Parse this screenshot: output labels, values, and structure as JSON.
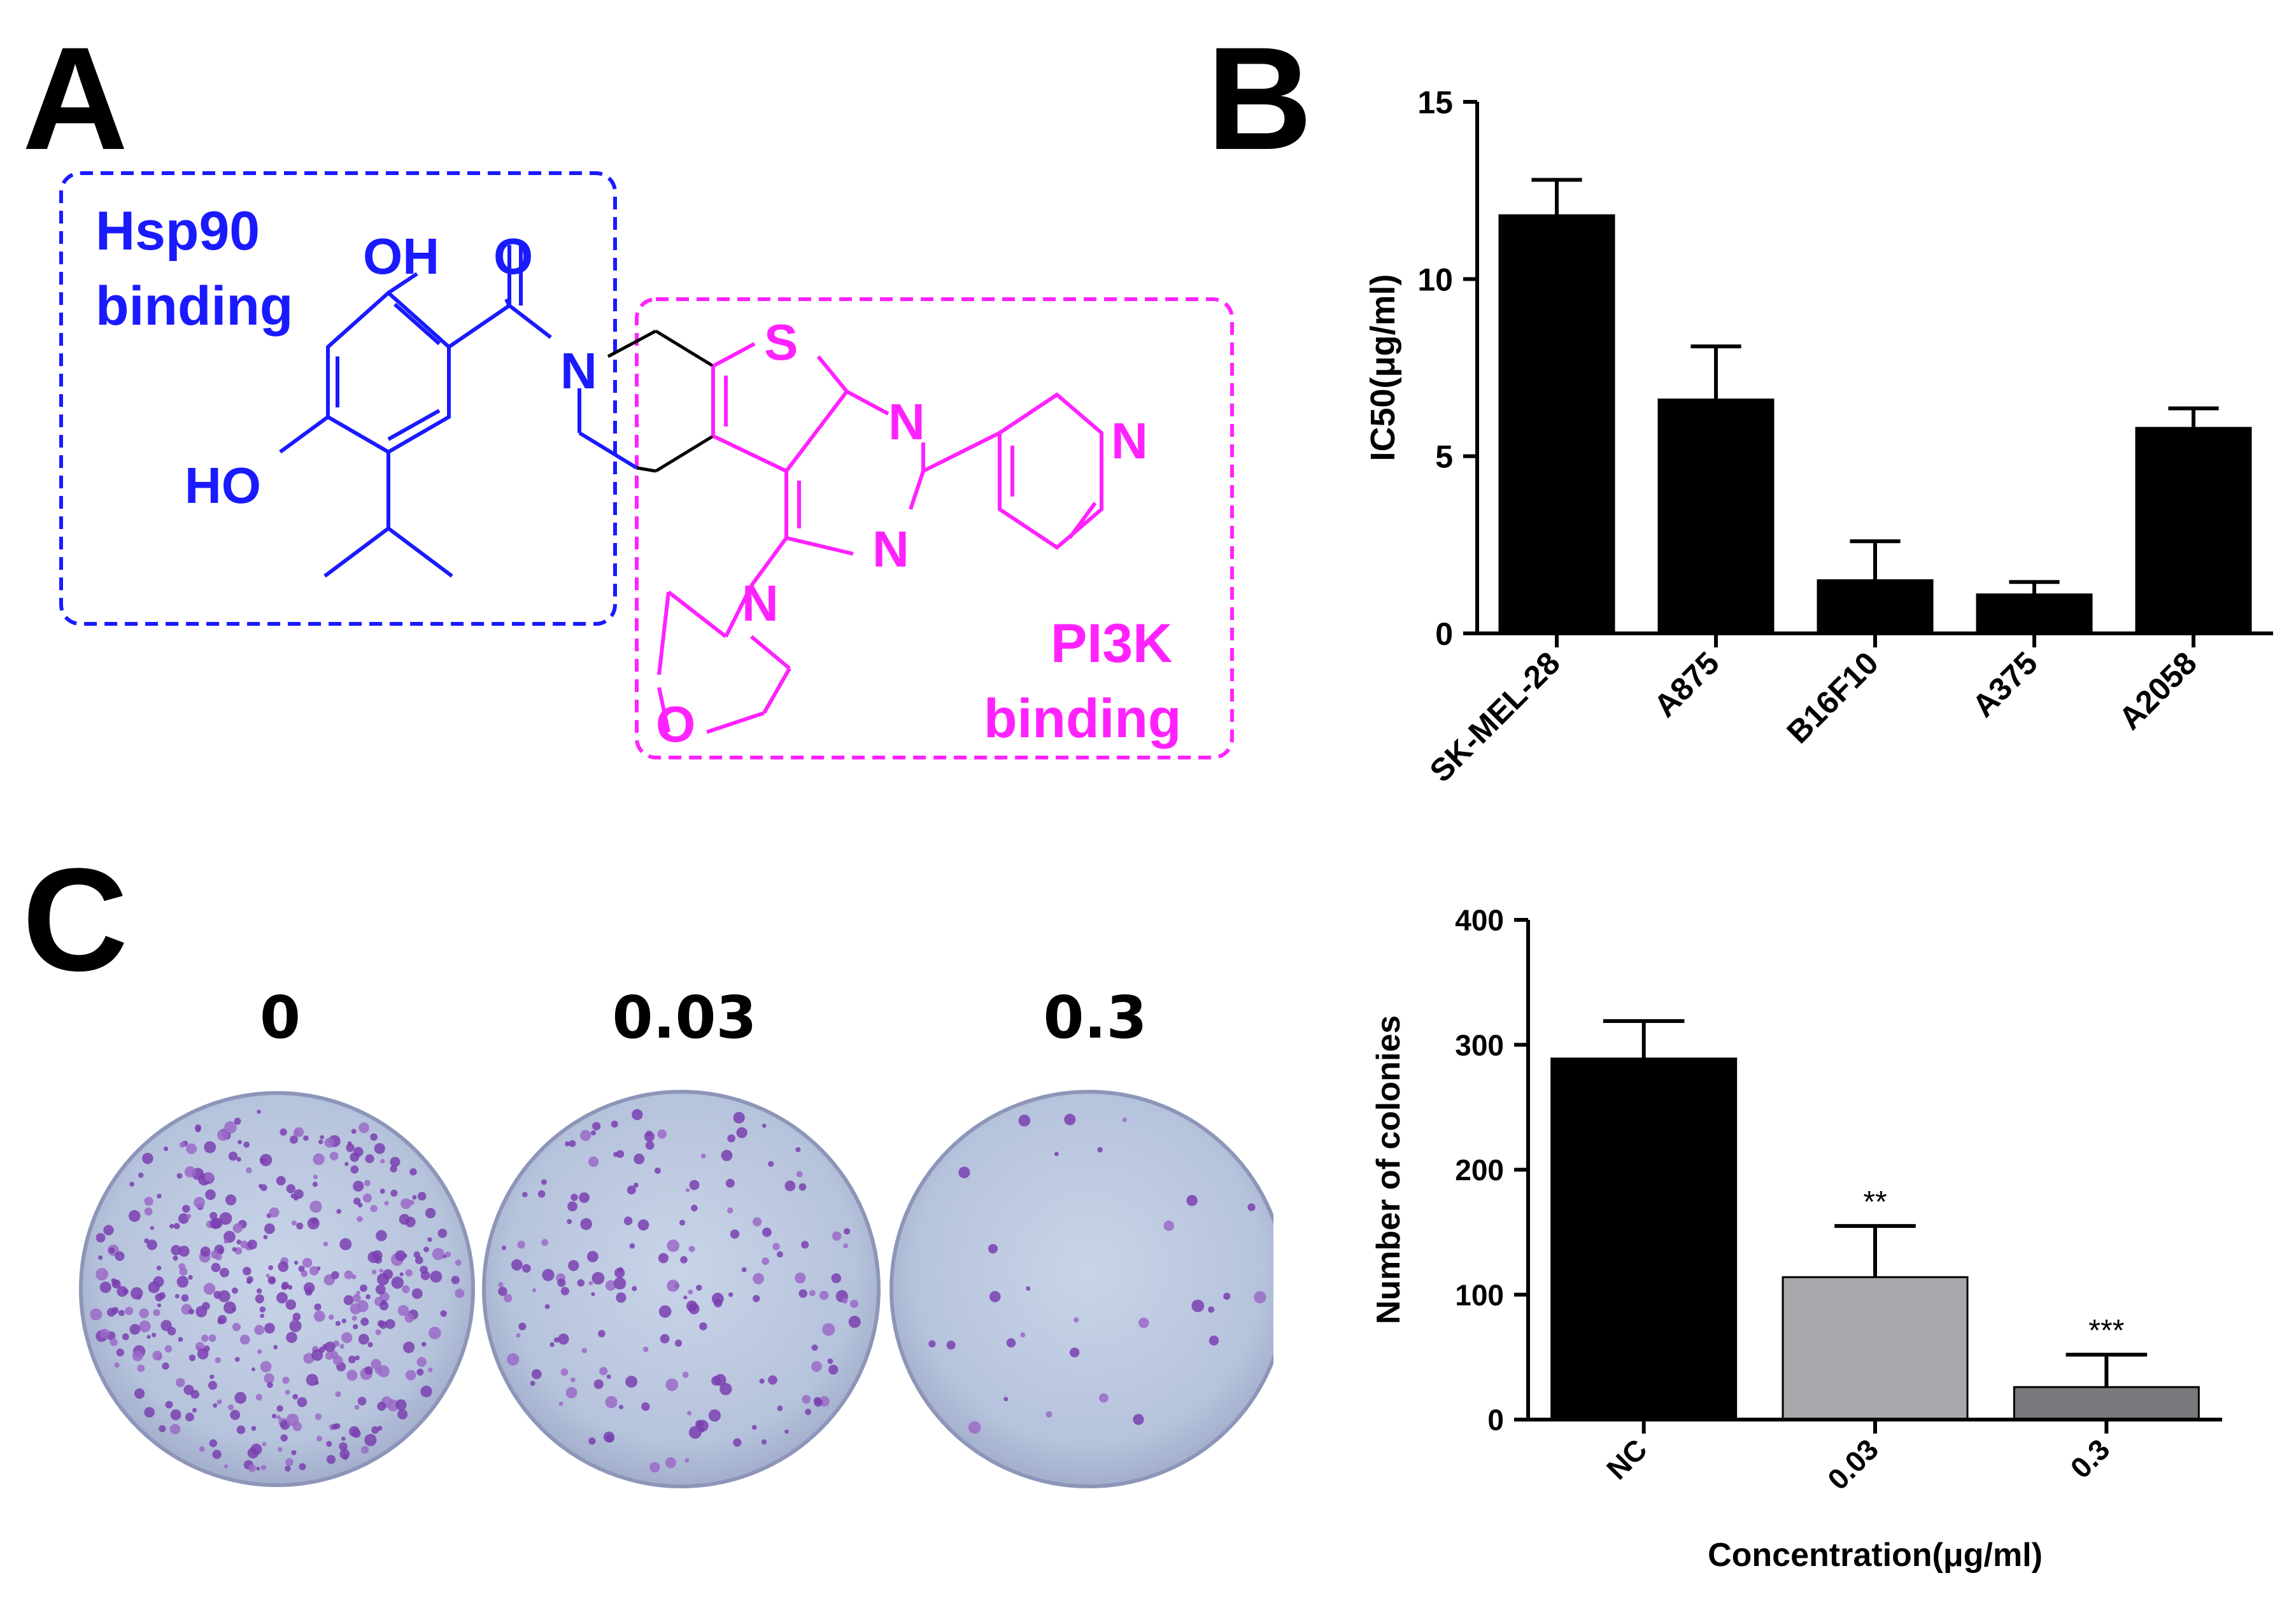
{
  "panels": {
    "a": "A",
    "b": "B",
    "c": "C"
  },
  "colors": {
    "hsp90": "#1a1aff",
    "pi3k": "#ff22ff",
    "bar_nc": "#000000",
    "bar_003": "#a8a8ac",
    "bar_03": "#7a7a7e"
  },
  "molecule": {
    "hsp90_label": [
      "Hsp90",
      "binding"
    ],
    "pi3k_label": [
      "PI3K",
      "binding"
    ],
    "atoms": {
      "oh_top": "OH",
      "o_carbonyl": "O",
      "n_amide": "N",
      "ho": "HO",
      "s": "S",
      "n_pyr1": "N",
      "n_pyr2": "N",
      "n_pyridine": "N",
      "n_morph": "N",
      "o_morph": "O"
    }
  },
  "plates": [
    {
      "label": "0",
      "density": 1.0
    },
    {
      "label": "0.03",
      "density": 0.4
    },
    {
      "label": "0.3",
      "density": 0.07
    }
  ],
  "chart_data": [
    {
      "type": "bar",
      "panel": "B",
      "categories": [
        "SK-MEL-28",
        "A875",
        "B16F10",
        "A375",
        "A2058"
      ],
      "values": [
        11.8,
        6.6,
        1.5,
        1.1,
        5.8
      ],
      "errors": [
        1.0,
        1.5,
        1.1,
        0.35,
        0.55
      ],
      "xlabel": "",
      "ylabel": "IC50(μg/ml)",
      "ylim": [
        0,
        15
      ],
      "yticks": [
        "0",
        "5",
        "10",
        "15"
      ],
      "bar_color": "#000000"
    },
    {
      "type": "bar",
      "panel": "C",
      "categories": [
        "NC",
        "0.03",
        "0.3"
      ],
      "values": [
        289,
        114,
        26
      ],
      "errors": [
        30,
        41,
        26
      ],
      "annotations": [
        "",
        "**",
        "***"
      ],
      "xlabel": "Concentration(μg/ml)",
      "ylabel": "Number of colonies",
      "ylim": [
        0,
        400
      ],
      "yticks": [
        "0",
        "100",
        "200",
        "300",
        "400"
      ],
      "bar_colors": [
        "#000000",
        "#a8a8ac",
        "#7a7a7e"
      ]
    }
  ]
}
